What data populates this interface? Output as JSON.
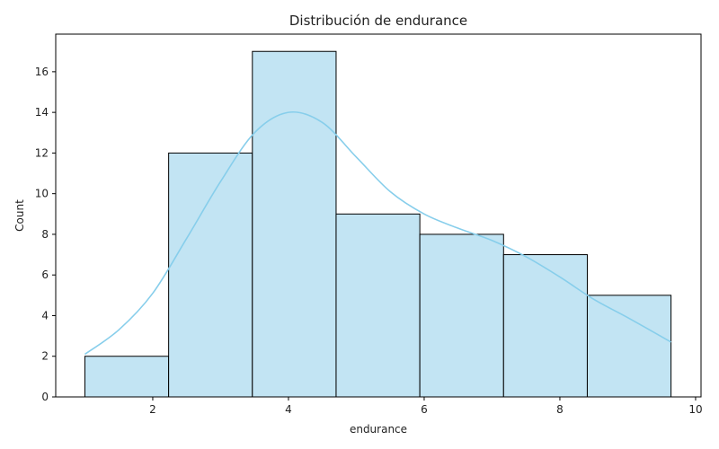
{
  "chart_data": {
    "type": "bar",
    "title": "Distribución de endurance",
    "xlabel": "endurance",
    "ylabel": "Count",
    "xlim": [
      0.57,
      10.08
    ],
    "ylim": [
      0,
      17.85
    ],
    "xticks": [
      2,
      4,
      6,
      8,
      10
    ],
    "yticks": [
      0,
      2,
      4,
      6,
      8,
      10,
      12,
      14,
      16
    ],
    "grid": false,
    "bins": [
      {
        "x0": 1.0,
        "x1": 2.234,
        "count": 2
      },
      {
        "x0": 2.234,
        "x1": 3.468,
        "count": 12
      },
      {
        "x0": 3.468,
        "x1": 4.702,
        "count": 17
      },
      {
        "x0": 4.702,
        "x1": 5.936,
        "count": 9
      },
      {
        "x0": 5.936,
        "x1": 7.17,
        "count": 8
      },
      {
        "x0": 7.17,
        "x1": 8.404,
        "count": 7
      },
      {
        "x0": 8.404,
        "x1": 9.638,
        "count": 5
      }
    ],
    "kde": {
      "x": [
        1.0,
        1.5,
        2.0,
        2.5,
        3.0,
        3.5,
        4.0,
        4.5,
        5.0,
        5.5,
        6.0,
        6.5,
        7.0,
        7.5,
        8.0,
        8.5,
        9.0,
        9.638
      ],
      "y": [
        2.1,
        3.3,
        5.1,
        7.8,
        10.6,
        13.0,
        14.0,
        13.5,
        11.8,
        10.1,
        9.0,
        8.3,
        7.7,
        6.9,
        5.9,
        4.8,
        3.9,
        2.7
      ]
    },
    "colors": {
      "bar_fill": "#c2e4f3",
      "bar_edge": "#000000",
      "kde_line": "#87ceeb"
    }
  }
}
